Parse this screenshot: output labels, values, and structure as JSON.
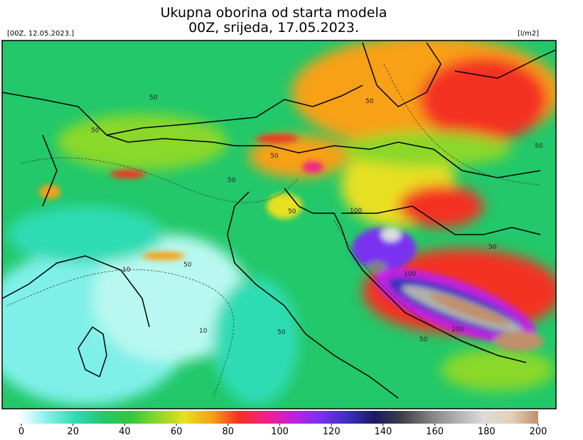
{
  "header": {
    "title_line1": "Ukupna oborina od starta modela",
    "title_line2": "00Z, srijeda, 17.05.2023.",
    "run_label": "[00Z, 12.05.2023.]",
    "unit_label": "[l/m2]"
  },
  "colorbar": {
    "range": [
      0,
      200
    ],
    "ticks": [
      0,
      20,
      40,
      60,
      80,
      100,
      120,
      140,
      160,
      180,
      200
    ],
    "colors": [
      "#f4fefe",
      "#7ff0e8",
      "#2ddcb4",
      "#22c86a",
      "#2ec83a",
      "#8ad82a",
      "#e8e020",
      "#f8a018",
      "#f43020",
      "#f0208a",
      "#c020e0",
      "#7a30f0",
      "#3a30c0",
      "#1a1a60",
      "#404048",
      "#808080",
      "#b0b0b0",
      "#dcdcdc",
      "#e4d0b8",
      "#c0906c"
    ]
  },
  "contour_labels": [
    "50",
    "50",
    "50",
    "50",
    "50",
    "50",
    "50",
    "50",
    "100",
    "100",
    "100",
    "10",
    "10",
    "50",
    "50",
    "50"
  ]
}
